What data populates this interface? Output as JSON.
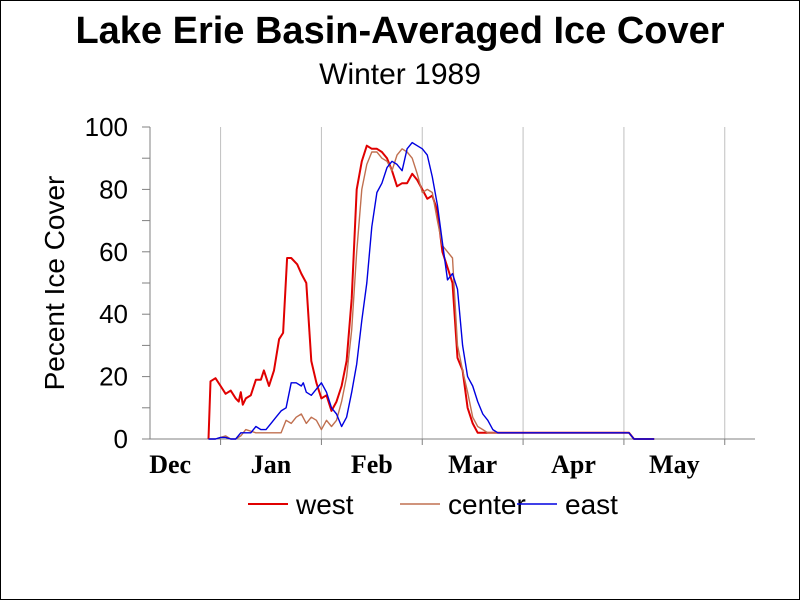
{
  "chart_data": {
    "type": "line",
    "title": "Lake Erie Basin-Averaged Ice Cover",
    "subtitle": "Winter 1989",
    "ylabel": "Pecent Ice Cover",
    "xlabel": "",
    "ylim": [
      0,
      100
    ],
    "yticks": [
      "0",
      "20",
      "40",
      "60",
      "80",
      "100"
    ],
    "xticks": [
      "Dec",
      "Jan",
      "Feb",
      "Mar",
      "Apr",
      "May"
    ],
    "xrange_months": [
      -0.2,
      5.8
    ],
    "grid": "vertical",
    "legend": "bottom",
    "series": [
      {
        "name": "west",
        "color": "#e00000",
        "points": [
          [
            0.38,
            0
          ],
          [
            0.4,
            18.5
          ],
          [
            0.45,
            19.5
          ],
          [
            0.5,
            17
          ],
          [
            0.55,
            14.5
          ],
          [
            0.6,
            15.5
          ],
          [
            0.65,
            13
          ],
          [
            0.68,
            12
          ],
          [
            0.7,
            15
          ],
          [
            0.72,
            11
          ],
          [
            0.75,
            13
          ],
          [
            0.8,
            14
          ],
          [
            0.85,
            19
          ],
          [
            0.9,
            19
          ],
          [
            0.93,
            22
          ],
          [
            0.98,
            17
          ],
          [
            1.03,
            22
          ],
          [
            1.08,
            32
          ],
          [
            1.12,
            34
          ],
          [
            1.16,
            58
          ],
          [
            1.2,
            58
          ],
          [
            1.26,
            56
          ],
          [
            1.3,
            53
          ],
          [
            1.35,
            50
          ],
          [
            1.4,
            25
          ],
          [
            1.45,
            18
          ],
          [
            1.5,
            13
          ],
          [
            1.55,
            14
          ],
          [
            1.6,
            9
          ],
          [
            1.65,
            12
          ],
          [
            1.7,
            17
          ],
          [
            1.75,
            25
          ],
          [
            1.8,
            45
          ],
          [
            1.85,
            80
          ],
          [
            1.9,
            89
          ],
          [
            1.95,
            94
          ],
          [
            2.0,
            93
          ],
          [
            2.05,
            93
          ],
          [
            2.1,
            92
          ],
          [
            2.15,
            90
          ],
          [
            2.2,
            86
          ],
          [
            2.25,
            81
          ],
          [
            2.3,
            82
          ],
          [
            2.35,
            82
          ],
          [
            2.4,
            85
          ],
          [
            2.45,
            83
          ],
          [
            2.5,
            80
          ],
          [
            2.55,
            77
          ],
          [
            2.6,
            78
          ],
          [
            2.65,
            73
          ],
          [
            2.7,
            60
          ],
          [
            2.75,
            55
          ],
          [
            2.8,
            50
          ],
          [
            2.85,
            26
          ],
          [
            2.9,
            22
          ],
          [
            2.95,
            10
          ],
          [
            3.0,
            5
          ],
          [
            3.05,
            2
          ],
          [
            3.1,
            2
          ],
          [
            3.15,
            2
          ],
          [
            3.2,
            2
          ],
          [
            3.3,
            2
          ],
          [
            3.5,
            2
          ],
          [
            3.8,
            2
          ],
          [
            4.0,
            2
          ],
          [
            4.3,
            2
          ],
          [
            4.55,
            2
          ],
          [
            4.6,
            0
          ],
          [
            4.8,
            0
          ]
        ]
      },
      {
        "name": "center",
        "color": "#c07050",
        "points": [
          [
            0.38,
            0
          ],
          [
            0.45,
            0
          ],
          [
            0.5,
            0.5
          ],
          [
            0.55,
            1
          ],
          [
            0.6,
            0
          ],
          [
            0.65,
            0
          ],
          [
            0.7,
            1
          ],
          [
            0.75,
            3
          ],
          [
            0.8,
            2.5
          ],
          [
            0.85,
            2
          ],
          [
            0.9,
            2
          ],
          [
            0.95,
            2
          ],
          [
            1.0,
            2
          ],
          [
            1.05,
            2
          ],
          [
            1.1,
            2
          ],
          [
            1.15,
            6
          ],
          [
            1.2,
            5
          ],
          [
            1.25,
            7
          ],
          [
            1.3,
            8
          ],
          [
            1.35,
            5
          ],
          [
            1.4,
            7
          ],
          [
            1.45,
            6
          ],
          [
            1.5,
            3
          ],
          [
            1.55,
            6
          ],
          [
            1.6,
            4
          ],
          [
            1.65,
            6
          ],
          [
            1.7,
            12
          ],
          [
            1.75,
            20
          ],
          [
            1.8,
            35
          ],
          [
            1.85,
            60
          ],
          [
            1.9,
            80
          ],
          [
            1.95,
            88
          ],
          [
            2.0,
            92
          ],
          [
            2.05,
            92
          ],
          [
            2.1,
            90
          ],
          [
            2.15,
            89
          ],
          [
            2.2,
            86
          ],
          [
            2.25,
            91
          ],
          [
            2.3,
            93
          ],
          [
            2.35,
            92
          ],
          [
            2.4,
            90
          ],
          [
            2.45,
            85
          ],
          [
            2.5,
            79
          ],
          [
            2.55,
            80
          ],
          [
            2.6,
            79
          ],
          [
            2.65,
            70
          ],
          [
            2.7,
            62
          ],
          [
            2.75,
            60
          ],
          [
            2.8,
            58
          ],
          [
            2.85,
            30
          ],
          [
            2.9,
            22
          ],
          [
            2.95,
            15
          ],
          [
            3.0,
            7
          ],
          [
            3.05,
            4
          ],
          [
            3.1,
            3
          ],
          [
            3.15,
            2
          ],
          [
            3.2,
            2
          ],
          [
            3.5,
            2
          ],
          [
            4.0,
            2
          ],
          [
            4.55,
            2
          ],
          [
            4.6,
            0
          ],
          [
            4.8,
            0
          ]
        ]
      },
      {
        "name": "east",
        "color": "#0000e0",
        "points": [
          [
            0.38,
            0
          ],
          [
            0.45,
            0
          ],
          [
            0.5,
            0.5
          ],
          [
            0.55,
            0.5
          ],
          [
            0.6,
            0
          ],
          [
            0.65,
            0
          ],
          [
            0.7,
            2
          ],
          [
            0.75,
            2
          ],
          [
            0.8,
            2
          ],
          [
            0.85,
            4
          ],
          [
            0.9,
            3
          ],
          [
            0.95,
            3
          ],
          [
            1.0,
            5
          ],
          [
            1.05,
            7
          ],
          [
            1.1,
            9
          ],
          [
            1.15,
            10
          ],
          [
            1.2,
            18
          ],
          [
            1.25,
            18
          ],
          [
            1.3,
            17
          ],
          [
            1.32,
            18
          ],
          [
            1.35,
            15
          ],
          [
            1.4,
            14
          ],
          [
            1.45,
            16
          ],
          [
            1.5,
            18
          ],
          [
            1.55,
            15
          ],
          [
            1.6,
            10
          ],
          [
            1.65,
            8
          ],
          [
            1.7,
            4
          ],
          [
            1.75,
            7
          ],
          [
            1.8,
            15
          ],
          [
            1.85,
            24
          ],
          [
            1.9,
            38
          ],
          [
            1.95,
            50
          ],
          [
            2.0,
            68
          ],
          [
            2.05,
            79
          ],
          [
            2.1,
            82
          ],
          [
            2.15,
            87
          ],
          [
            2.2,
            89
          ],
          [
            2.25,
            88
          ],
          [
            2.3,
            86
          ],
          [
            2.35,
            93
          ],
          [
            2.4,
            95
          ],
          [
            2.45,
            94
          ],
          [
            2.5,
            93
          ],
          [
            2.55,
            91
          ],
          [
            2.6,
            84
          ],
          [
            2.65,
            75
          ],
          [
            2.7,
            63
          ],
          [
            2.75,
            51
          ],
          [
            2.8,
            53
          ],
          [
            2.85,
            48
          ],
          [
            2.9,
            30
          ],
          [
            2.95,
            20
          ],
          [
            3.0,
            17
          ],
          [
            3.05,
            12
          ],
          [
            3.1,
            8
          ],
          [
            3.15,
            6
          ],
          [
            3.2,
            3
          ],
          [
            3.25,
            2
          ],
          [
            3.5,
            2
          ],
          [
            4.0,
            2
          ],
          [
            4.55,
            2
          ],
          [
            4.6,
            0
          ],
          [
            4.8,
            0
          ]
        ]
      }
    ]
  }
}
